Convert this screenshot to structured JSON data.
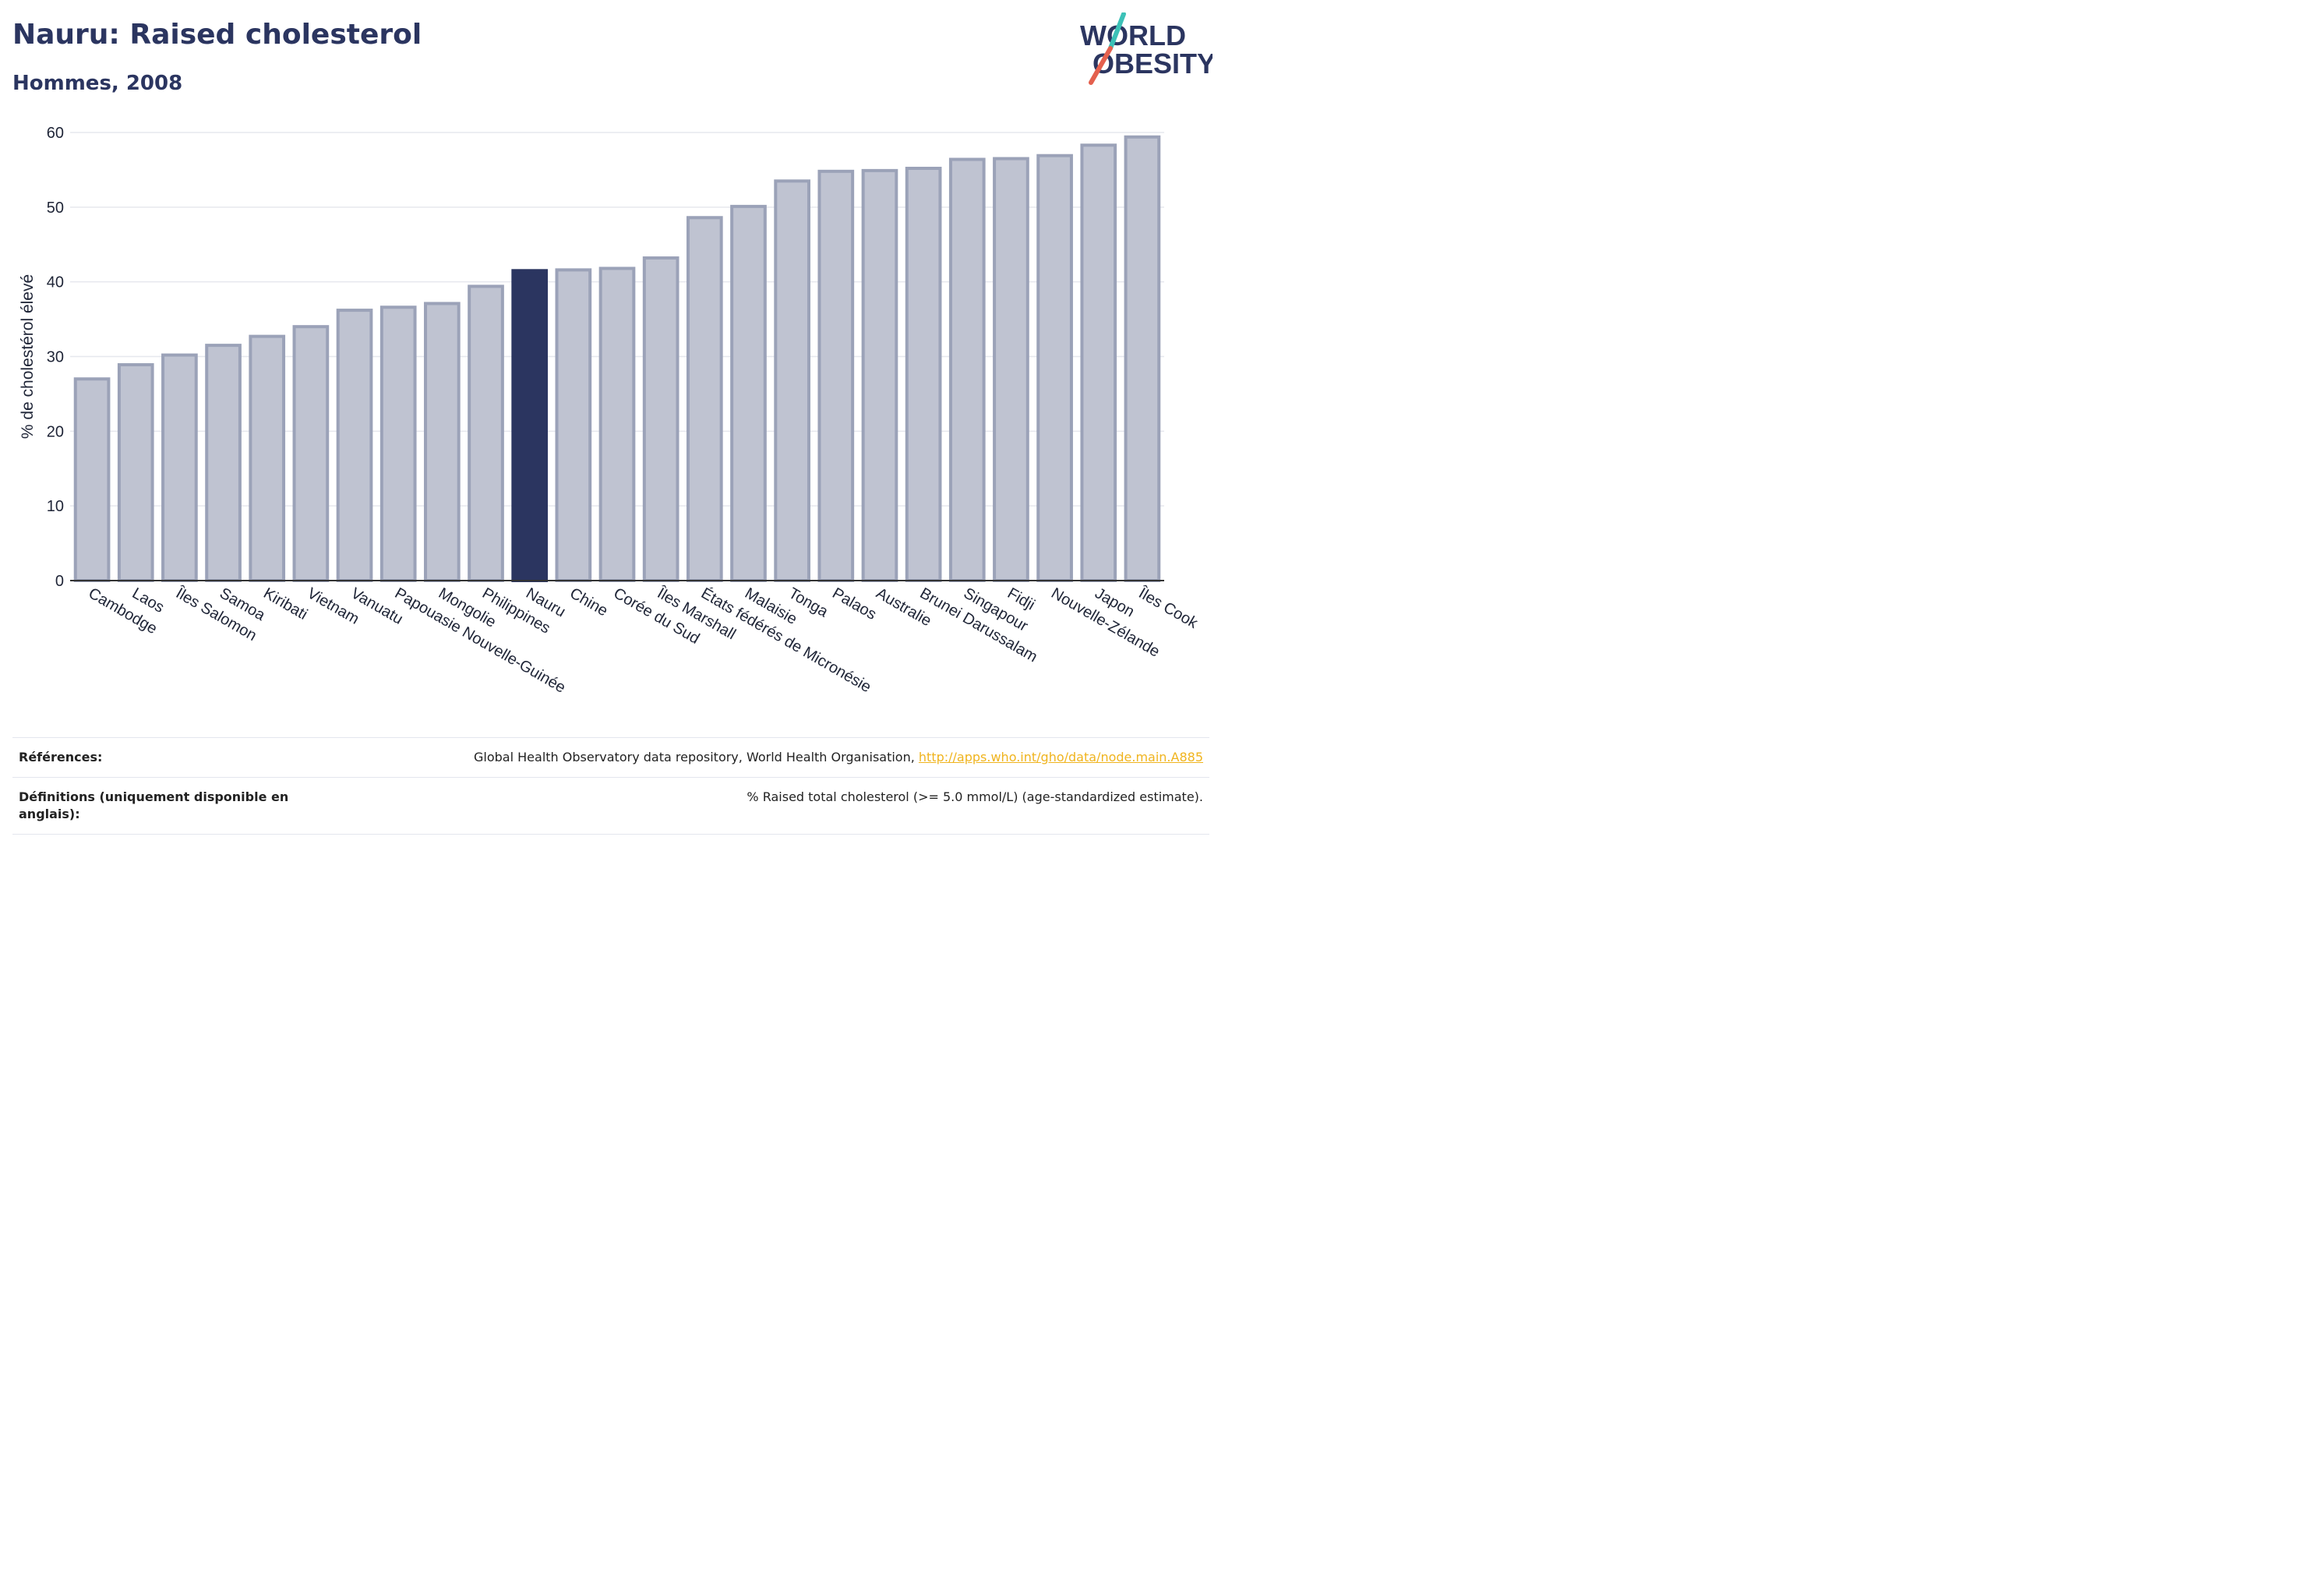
{
  "header": {
    "title": "Nauru: Raised cholesterol",
    "subtitle": "Hommes, 2008"
  },
  "logo": {
    "line1": "WORLD",
    "line2": "OBESITY",
    "slash_colors": [
      "#3cc1b7",
      "#e4604e"
    ]
  },
  "chart_data": {
    "type": "bar",
    "ylabel": "% de cholestérol élevé",
    "ylim": [
      0,
      60
    ],
    "yticks": [
      0,
      10,
      20,
      30,
      40,
      50,
      60
    ],
    "grid": true,
    "highlight_category": "Nauru",
    "colors": {
      "bar": "#bfc3d1",
      "bar_stroke": "#9ba2b8",
      "highlight": "#2b3560",
      "grid": "#e6e8ee",
      "axis": "#333333"
    },
    "categories": [
      "Cambodge",
      "Laos",
      "Îles Salomon",
      "Samoa",
      "Kiribati",
      "Vietnam",
      "Vanuatu",
      "Papouasie Nouvelle-Guinée",
      "Mongolie",
      "Philippines",
      "Nauru",
      "Chine",
      "Corée du Sud",
      "Îles Marshall",
      "États fédérés de Micronésie",
      "Malaisie",
      "Tonga",
      "Palaos",
      "Australie",
      "Brunei Darussalam",
      "Singapour",
      "Fidji",
      "Nouvelle-Zélande",
      "Japon",
      "Îles Cook"
    ],
    "values": [
      27.0,
      28.9,
      30.2,
      31.5,
      32.7,
      34.0,
      36.2,
      36.6,
      37.1,
      39.4,
      41.5,
      41.6,
      41.8,
      43.2,
      48.6,
      50.1,
      53.5,
      54.8,
      54.9,
      55.2,
      56.4,
      56.5,
      56.9,
      58.3,
      59.4
    ]
  },
  "footer": {
    "references_label": "Références:",
    "references_text": "Global Health Observatory data repository, World Health Organisation, ",
    "references_link": "http://apps.who.int/gho/data/node.main.A885",
    "definitions_label": "Définitions (uniquement disponible en anglais):",
    "definitions_text": "% Raised total cholesterol (>= 5.0 mmol/L) (age-standardized estimate)."
  }
}
